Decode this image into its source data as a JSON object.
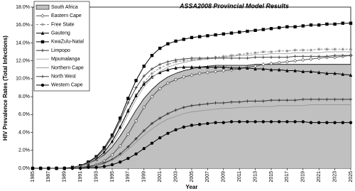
{
  "chart_data": {
    "type": "line",
    "title": "ASSA2008 Provincial Model Results",
    "x_label": "Year",
    "y_label": "HIV Prevalence Rates (Total Infections)",
    "x": [
      1985,
      1986,
      1987,
      1988,
      1989,
      1990,
      1991,
      1992,
      1993,
      1994,
      1995,
      1996,
      1997,
      1998,
      1999,
      2000,
      2001,
      2002,
      2003,
      2004,
      2005,
      2006,
      2007,
      2008,
      2009,
      2010,
      2011,
      2012,
      2013,
      2014,
      2015,
      2016,
      2017,
      2018,
      2019,
      2020,
      2021,
      2022,
      2023,
      2024,
      2025
    ],
    "xlim": [
      1985,
      2025
    ],
    "xticks": [
      1985,
      1987,
      1989,
      1991,
      1993,
      1995,
      1997,
      1999,
      2001,
      2003,
      2005,
      2007,
      2009,
      2011,
      2013,
      2015,
      2017,
      2019,
      2021,
      2023,
      2025
    ],
    "ylim": [
      0,
      18
    ],
    "yticks": [
      {
        "value": 0,
        "label": "0.0%"
      },
      {
        "value": 2,
        "label": "2.0%"
      },
      {
        "value": 4,
        "label": "4.0%"
      },
      {
        "value": 6,
        "label": "6.0%"
      },
      {
        "value": 8,
        "label": "8.0%"
      },
      {
        "value": 10,
        "label": "10.0%"
      },
      {
        "value": 12,
        "label": "12.0%"
      },
      {
        "value": 14,
        "label": "14.0%"
      },
      {
        "value": 16,
        "label": "16.0%"
      },
      {
        "value": 18,
        "label": "18.0%"
      }
    ],
    "legend": "upper left",
    "series": [
      {
        "name": "South Africa",
        "color": "#000000",
        "fill": "#c0c0c0",
        "marker": "none",
        "values": [
          0,
          0,
          0,
          0,
          0,
          0.1,
          0.2,
          0.5,
          0.9,
          1.5,
          2.4,
          3.6,
          5.0,
          6.5,
          7.8,
          8.8,
          9.6,
          10.2,
          10.6,
          10.9,
          11.1,
          11.3,
          11.4,
          11.5,
          11.5,
          11.5,
          11.5,
          11.5,
          11.6,
          11.6,
          11.6,
          11.6,
          11.6,
          11.6,
          11.6,
          11.6,
          11.6,
          11.6,
          11.6,
          11.6,
          11.6
        ]
      },
      {
        "name": "Eastern Cape",
        "color": "#555555",
        "marker": "diamond-open",
        "values": [
          0,
          0,
          0,
          0,
          0,
          0,
          0.1,
          0.2,
          0.4,
          0.8,
          1.5,
          2.5,
          3.8,
          5.3,
          6.8,
          8.0,
          8.9,
          9.5,
          9.9,
          10.2,
          10.4,
          10.6,
          10.7,
          10.8,
          10.9,
          11.0,
          11.1,
          11.3,
          11.4,
          11.6,
          11.7,
          11.8,
          11.9,
          12.0,
          12.1,
          12.2,
          12.3,
          12.4,
          12.4,
          12.5,
          12.6
        ]
      },
      {
        "name": "Free State",
        "color": "#888888",
        "marker": "star",
        "dash": true,
        "values": [
          0,
          0,
          0,
          0,
          0,
          0.1,
          0.2,
          0.5,
          1.0,
          1.8,
          3.0,
          4.6,
          6.5,
          8.2,
          9.6,
          10.6,
          11.2,
          11.6,
          11.9,
          12.0,
          12.1,
          12.2,
          12.3,
          12.4,
          12.5,
          12.6,
          12.7,
          12.8,
          12.9,
          13.0,
          13.0,
          13.1,
          13.1,
          13.2,
          13.2,
          13.2,
          13.3,
          13.3,
          13.3,
          13.3,
          13.3
        ]
      },
      {
        "name": "Gauteng",
        "color": "#000000",
        "marker": "triangle",
        "values": [
          0,
          0,
          0,
          0,
          0,
          0.1,
          0.2,
          0.5,
          1.0,
          1.8,
          3.0,
          4.6,
          6.4,
          8.1,
          9.4,
          10.2,
          10.7,
          11.0,
          11.2,
          11.3,
          11.3,
          11.3,
          11.3,
          11.3,
          11.3,
          11.2,
          11.2,
          11.2,
          11.1,
          11.1,
          11.0,
          11.0,
          10.9,
          10.9,
          10.8,
          10.8,
          10.7,
          10.6,
          10.6,
          10.5,
          10.4
        ]
      },
      {
        "name": "KwaZulu-Natal",
        "color": "#000000",
        "marker": "square",
        "values": [
          0,
          0,
          0,
          0,
          0,
          0.1,
          0.3,
          0.7,
          1.3,
          2.3,
          3.7,
          5.6,
          7.8,
          9.8,
          11.4,
          12.6,
          13.4,
          13.9,
          14.2,
          14.4,
          14.6,
          14.7,
          14.8,
          14.9,
          15.0,
          15.1,
          15.2,
          15.3,
          15.4,
          15.5,
          15.6,
          15.7,
          15.8,
          15.8,
          15.9,
          16.0,
          16.0,
          16.1,
          16.1,
          16.2,
          16.2
        ]
      },
      {
        "name": "Limpopo",
        "color": "#333333",
        "marker": "plus",
        "values": [
          0,
          0,
          0,
          0,
          0,
          0,
          0.1,
          0.2,
          0.3,
          0.6,
          1.0,
          1.6,
          2.4,
          3.3,
          4.2,
          5.0,
          5.6,
          6.1,
          6.5,
          6.8,
          7.0,
          7.1,
          7.2,
          7.3,
          7.3,
          7.4,
          7.4,
          7.5,
          7.5,
          7.5,
          7.6,
          7.6,
          7.6,
          7.6,
          7.7,
          7.7,
          7.7,
          7.7,
          7.7,
          7.7,
          7.7
        ]
      },
      {
        "name": "Mpumalanga",
        "color": "#aaaaaa",
        "marker": "none",
        "values": [
          0,
          0,
          0,
          0,
          0,
          0.1,
          0.2,
          0.5,
          0.9,
          1.6,
          2.7,
          4.2,
          6.0,
          7.7,
          9.1,
          10.1,
          10.8,
          11.3,
          11.6,
          11.8,
          12.0,
          12.1,
          12.2,
          12.3,
          12.4,
          12.5,
          12.6,
          12.6,
          12.7,
          12.7,
          12.8,
          12.8,
          12.8,
          12.9,
          12.9,
          12.9,
          12.9,
          13.0,
          13.0,
          13.0,
          13.0
        ]
      },
      {
        "name": "Northern Cape",
        "color": "#999999",
        "marker": "none",
        "values": [
          0,
          0,
          0,
          0,
          0,
          0,
          0.1,
          0.1,
          0.3,
          0.5,
          0.9,
          1.4,
          2.1,
          2.9,
          3.7,
          4.4,
          5.0,
          5.5,
          5.8,
          6.1,
          6.3,
          6.4,
          6.5,
          6.6,
          6.7,
          6.7,
          6.8,
          6.8,
          6.9,
          6.9,
          6.9,
          7.0,
          7.0,
          7.0,
          7.0,
          7.1,
          7.1,
          7.1,
          7.1,
          7.1,
          7.1
        ]
      },
      {
        "name": "North West",
        "color": "#444444",
        "marker": "plus",
        "values": [
          0,
          0,
          0,
          0,
          0,
          0.1,
          0.3,
          0.6,
          1.2,
          2.1,
          3.5,
          5.3,
          7.3,
          9.0,
          10.3,
          11.1,
          11.6,
          11.9,
          12.1,
          12.2,
          12.3,
          12.3,
          12.3,
          12.3,
          12.3,
          12.3,
          12.3,
          12.3,
          12.4,
          12.4,
          12.4,
          12.4,
          12.4,
          12.5,
          12.5,
          12.5,
          12.5,
          12.5,
          12.6,
          12.6,
          12.6
        ]
      },
      {
        "name": "Western Cape",
        "color": "#000000",
        "marker": "circle",
        "values": [
          0,
          0,
          0,
          0,
          0,
          0,
          0,
          0.1,
          0.1,
          0.2,
          0.4,
          0.7,
          1.1,
          1.6,
          2.2,
          2.8,
          3.4,
          3.9,
          4.3,
          4.6,
          4.8,
          4.9,
          5.0,
          5.1,
          5.1,
          5.2,
          5.2,
          5.2,
          5.2,
          5.2,
          5.2,
          5.2,
          5.2,
          5.2,
          5.2,
          5.1,
          5.1,
          5.1,
          5.1,
          5.1,
          5.1
        ]
      }
    ]
  }
}
